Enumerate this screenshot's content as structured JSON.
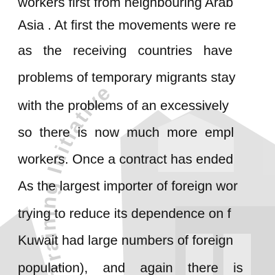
{
  "document": {
    "lines": [
      "workers first from neighbouring Arab",
      "Asia . At first the movements were re",
      "as   the   receiving   countries   have",
      "problems of temporary migrants stay",
      "with the problems of an excessively",
      "so  there  is  now  much  more  empl",
      "workers. Once a contract has ended",
      "As the largest importer of foreign wor",
      "trying to reduce its dependence on f",
      "Kuwait had large numbers of foreign",
      "population),    and    again    there    is"
    ]
  },
  "watermark": {
    "text": "Training Initiative",
    "color": "#b8b8b8"
  }
}
